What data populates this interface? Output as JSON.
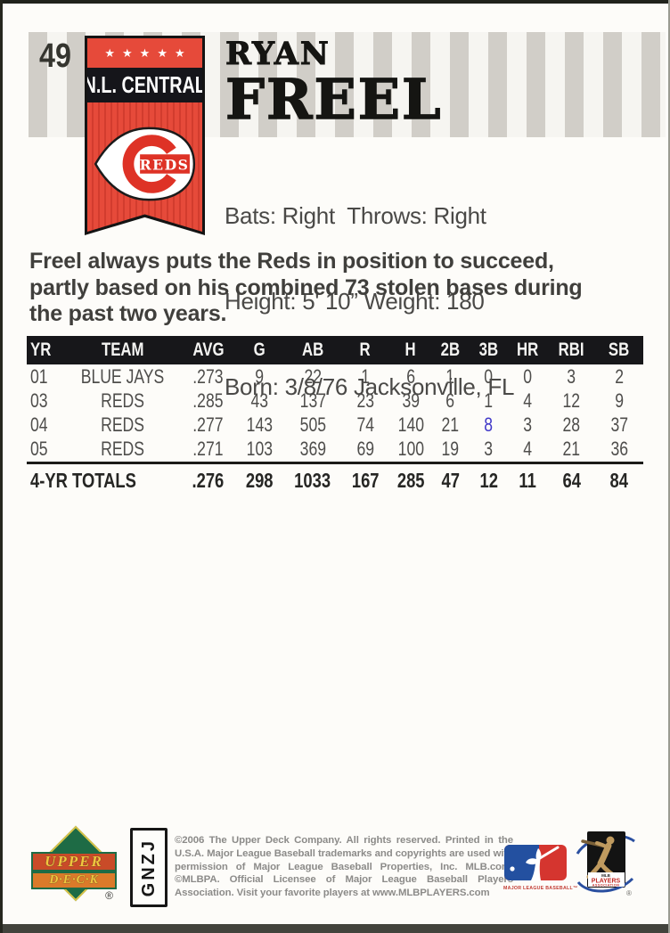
{
  "card": {
    "number": "49",
    "banner": {
      "stars": "★★★★★",
      "division": "N.L. CENTRAL",
      "team": "REDS"
    },
    "player": {
      "first_name": "RYAN",
      "last_name": "FREEL"
    },
    "bio": {
      "line1": "Bats: Right  Throws: Right",
      "line2": "Height: 5' 10” Weight: 180",
      "line3": "Born: 3/8/76 Jacksonville, FL"
    },
    "description": "Freel always puts the Reds in position to succeed,\npartly based on his combined 73 stolen bases during\nthe past two years."
  },
  "stats": {
    "columns": [
      "YR",
      "TEAM",
      "AVG",
      "G",
      "AB",
      "R",
      "H",
      "2B",
      "3B",
      "HR",
      "RBI",
      "SB"
    ],
    "rows": [
      [
        "01",
        "BLUE JAYS",
        ".273",
        "9",
        "22",
        "1",
        "6",
        "1",
        "0",
        "0",
        "3",
        "2"
      ],
      [
        "03",
        "REDS",
        ".285",
        "43",
        "137",
        "23",
        "39",
        "6",
        "1",
        "4",
        "12",
        "9"
      ],
      [
        "04",
        "REDS",
        ".277",
        "143",
        "505",
        "74",
        "140",
        "21",
        "8",
        "3",
        "28",
        "37"
      ],
      [
        "05",
        "REDS",
        ".271",
        "103",
        "369",
        "69",
        "100",
        "19",
        "3",
        "4",
        "21",
        "36"
      ]
    ],
    "totals": {
      "label": "4-YR TOTALS",
      "values": [
        ".276",
        "298",
        "1033",
        "167",
        "285",
        "47",
        "12",
        "11",
        "64",
        "84"
      ]
    },
    "highlight": {
      "row": 2,
      "col": 8,
      "color": "#4038c8"
    }
  },
  "footer": {
    "brand": {
      "top": "UPPER",
      "bottom": "D·E·C·K",
      "registered": "®"
    },
    "code": "GNZJ",
    "copyright": "©2006 The Upper Deck Company. All rights reserved. Printed in the U.S.A. Major League Baseball trademarks and copyrights are used with permission of Major League Baseball Properties, Inc. MLB.com. ©MLBPA. Official Licensee of Major League Baseball Players Association. Visit your favorite players at www.MLBPLAYERS.com",
    "mlb_caption": "MAJOR LEAGUE BASEBALL™",
    "mlbpa": {
      "line1": "MLB",
      "line2": "PLAYERS",
      "line3": "ASSOCIATION",
      "registered": "®"
    }
  },
  "colors": {
    "banner_red": "#e64a3a",
    "bar_black": "#15151a",
    "reds_logo_red": "#de3226",
    "stripe_gray": "#d1cec8",
    "ud_green": "#1e6b45",
    "mlb_blue": "#2350a0",
    "mlb_red": "#d5352f"
  }
}
